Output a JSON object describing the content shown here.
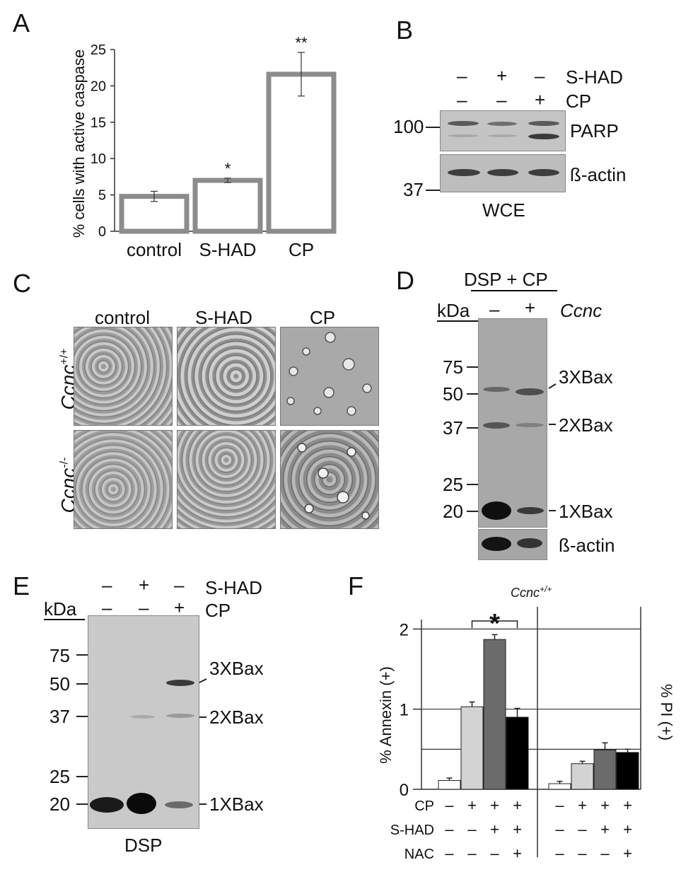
{
  "panels": {
    "A": {
      "label": "A",
      "chart_data": {
        "type": "bar",
        "categories": [
          "control",
          "S-HAD",
          "CP"
        ],
        "values": [
          4.8,
          7.0,
          21.6
        ],
        "errors": [
          0.7,
          0.3,
          3.0
        ],
        "significance": [
          "",
          "*",
          "**"
        ],
        "ylabel": "% cells with active caspase",
        "ylim": [
          0,
          25
        ],
        "yticks": [
          "0",
          "5",
          "10",
          "15",
          "20",
          "25"
        ],
        "bar_color": "#8c8c8c"
      }
    },
    "B": {
      "label": "B",
      "rows": [
        {
          "name": "S-HAD",
          "signs": [
            "–",
            "+",
            "–"
          ]
        },
        {
          "name": "CP",
          "signs": [
            "–",
            "–",
            "+"
          ]
        }
      ],
      "markers": [
        "100",
        "37"
      ],
      "bands": [
        "PARP",
        "ß-actin"
      ],
      "caption": "WCE"
    },
    "C": {
      "label": "C",
      "columns": [
        "control",
        "S-HAD",
        "CP"
      ],
      "row_italic": [
        "Ccnc",
        "Ccnc"
      ],
      "row_sup": [
        "+/+",
        "-/-"
      ]
    },
    "D": {
      "label": "D",
      "header": "DSP + CP",
      "kda": "kDa",
      "lane_signs": [
        "–",
        "+"
      ],
      "gene": "Ccnc",
      "markers": [
        "75",
        "50",
        "37",
        "25",
        "20"
      ],
      "bands": [
        "3XBax",
        "2XBax",
        "1XBax"
      ],
      "actin": "ß-actin"
    },
    "E": {
      "label": "E",
      "rows": [
        {
          "name": "S-HAD",
          "signs": [
            "–",
            "+",
            "–"
          ]
        },
        {
          "name": "CP",
          "signs": [
            "–",
            "–",
            "+"
          ]
        }
      ],
      "kda": "kDa",
      "markers": [
        "75",
        "50",
        "37",
        "25",
        "20"
      ],
      "bands": [
        "3XBax",
        "2XBax",
        "1XBax"
      ],
      "caption": "DSP"
    },
    "F": {
      "label": "F",
      "genotype": "Ccnc",
      "genotype_sup": "+/+",
      "ylabel_left": "% Annexin (+)",
      "ylabel_right": "% PI (+)",
      "yticks": [
        "0",
        "1",
        "2"
      ],
      "significance": "*",
      "chart_data": {
        "type": "bar",
        "ylim": [
          0,
          2.2
        ],
        "groups": [
          {
            "name": "",
            "values": [
              0.11,
              1.03,
              1.87,
              0.9
            ],
            "errors": [
              0.03,
              0.06,
              0.06,
              0.11
            ]
          },
          {
            "name": "",
            "values": [
              0.07,
              0.32,
              0.49,
              0.46
            ],
            "errors": [
              0.03,
              0.03,
              0.09,
              0.04
            ]
          }
        ],
        "colors": [
          "#ffffff",
          "#d3d3d3",
          "#6b6b6b",
          "#000000"
        ]
      },
      "treatment_rows": [
        {
          "name": "CP",
          "signs": [
            "–",
            "+",
            "+",
            "+"
          ]
        },
        {
          "name": "S-HAD",
          "signs": [
            "–",
            "–",
            "+",
            "+"
          ]
        },
        {
          "name": "NAC",
          "signs": [
            "–",
            "–",
            "–",
            "+"
          ]
        }
      ]
    }
  }
}
